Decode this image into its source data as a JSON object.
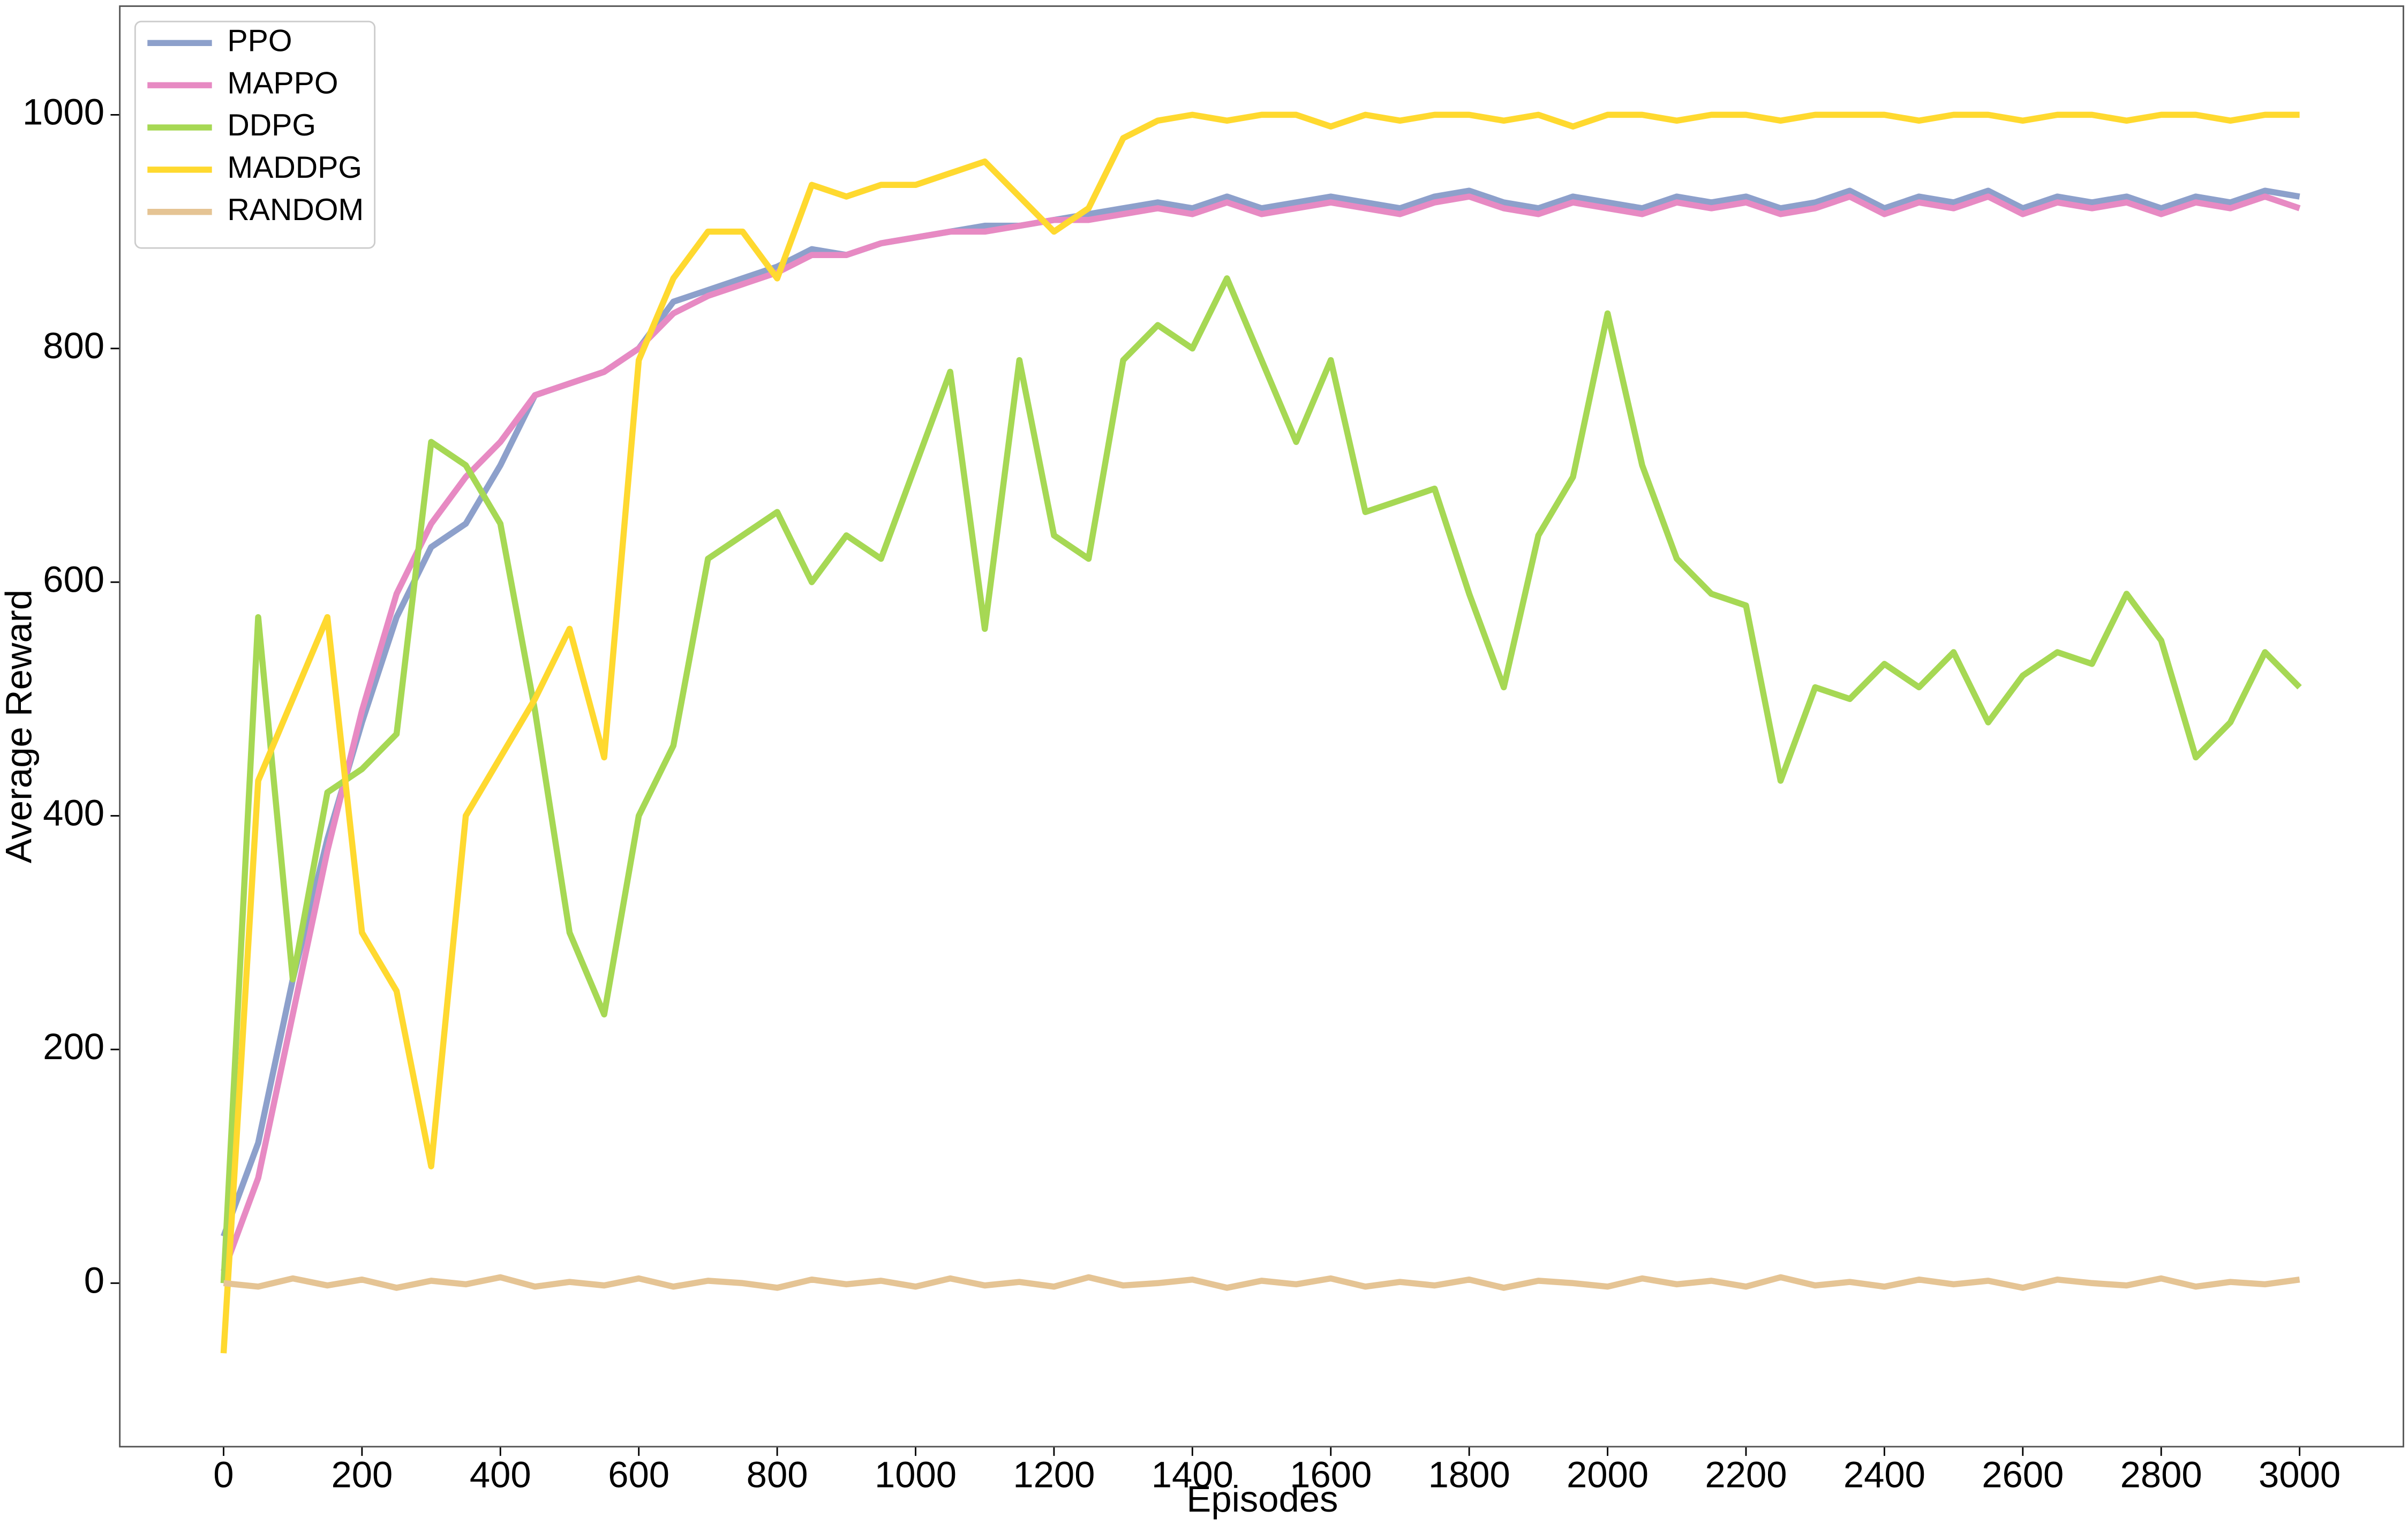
{
  "chart_data": {
    "type": "line",
    "xlabel": "Episodes",
    "ylabel": "Average Reward",
    "x": [
      0,
      50,
      100,
      150,
      200,
      250,
      300,
      350,
      400,
      450,
      500,
      550,
      600,
      650,
      700,
      750,
      800,
      850,
      900,
      950,
      1000,
      1050,
      1100,
      1150,
      1200,
      1250,
      1300,
      1350,
      1400,
      1450,
      1500,
      1550,
      1600,
      1650,
      1700,
      1750,
      1800,
      1850,
      1900,
      1950,
      2000,
      2050,
      2100,
      2150,
      2200,
      2250,
      2300,
      2350,
      2400,
      2450,
      2500,
      2550,
      2600,
      2650,
      2700,
      2750,
      2800,
      2850,
      2900,
      2950,
      3000
    ],
    "series": [
      {
        "name": "PPO",
        "color": "#8da0cb",
        "values": [
          40,
          120,
          260,
          380,
          480,
          570,
          630,
          650,
          700,
          760,
          770,
          780,
          800,
          840,
          850,
          860,
          870,
          885,
          880,
          890,
          895,
          900,
          905,
          905,
          910,
          915,
          920,
          925,
          920,
          930,
          920,
          925,
          930,
          925,
          920,
          930,
          935,
          925,
          920,
          930,
          925,
          920,
          930,
          925,
          930,
          920,
          925,
          935,
          920,
          930,
          925,
          935,
          920,
          930,
          925,
          930,
          920,
          930,
          925,
          935,
          930
        ]
      },
      {
        "name": "MAPPO",
        "color": "#e78ac3",
        "values": [
          10,
          90,
          230,
          370,
          490,
          590,
          650,
          690,
          720,
          760,
          770,
          780,
          800,
          830,
          845,
          855,
          865,
          880,
          880,
          890,
          895,
          900,
          900,
          905,
          910,
          910,
          915,
          920,
          915,
          925,
          915,
          920,
          925,
          920,
          915,
          925,
          930,
          920,
          915,
          925,
          920,
          915,
          925,
          920,
          925,
          915,
          920,
          930,
          915,
          925,
          920,
          930,
          915,
          925,
          920,
          925,
          915,
          925,
          920,
          930,
          920
        ]
      },
      {
        "name": "DDPG",
        "color": "#a6d854",
        "values": [
          0,
          570,
          260,
          420,
          440,
          470,
          720,
          700,
          650,
          490,
          300,
          230,
          400,
          460,
          620,
          640,
          660,
          600,
          640,
          620,
          700,
          780,
          560,
          790,
          640,
          620,
          790,
          820,
          800,
          860,
          790,
          720,
          790,
          660,
          670,
          680,
          590,
          510,
          640,
          690,
          830,
          700,
          620,
          590,
          580,
          430,
          510,
          500,
          530,
          510,
          540,
          480,
          520,
          540,
          530,
          590,
          550,
          450,
          480,
          540,
          510
        ]
      },
      {
        "name": "MADDPG",
        "color": "#ffd92f",
        "values": [
          -60,
          430,
          500,
          570,
          300,
          250,
          100,
          400,
          450,
          500,
          560,
          450,
          790,
          860,
          900,
          900,
          860,
          940,
          930,
          940,
          940,
          950,
          960,
          930,
          900,
          920,
          980,
          995,
          1000,
          995,
          1000,
          1000,
          990,
          1000,
          995,
          1000,
          1000,
          995,
          1000,
          990,
          1000,
          1000,
          995,
          1000,
          1000,
          995,
          1000,
          1000,
          1000,
          995,
          1000,
          1000,
          995,
          1000,
          1000,
          995,
          1000,
          1000,
          995,
          1000,
          1000
        ]
      },
      {
        "name": "RANDOM",
        "color": "#e5c494",
        "values": [
          0,
          -3,
          4,
          -2,
          3,
          -4,
          2,
          -1,
          5,
          -3,
          1,
          -2,
          4,
          -3,
          2,
          0,
          -4,
          3,
          -1,
          2,
          -3,
          4,
          -2,
          1,
          -3,
          5,
          -2,
          0,
          3,
          -4,
          2,
          -1,
          4,
          -3,
          1,
          -2,
          3,
          -4,
          2,
          0,
          -3,
          4,
          -1,
          2,
          -3,
          5,
          -2,
          1,
          -3,
          3,
          -1,
          2,
          -4,
          3,
          0,
          -2,
          4,
          -3,
          1,
          -1,
          3
        ]
      }
    ],
    "xlim": [
      -150,
      3150
    ],
    "ylim": [
      -140,
      1093
    ],
    "xticks": [
      0,
      200,
      400,
      600,
      800,
      1000,
      1200,
      1400,
      1600,
      1800,
      2000,
      2200,
      2400,
      2600,
      2800,
      3000
    ],
    "yticks": [
      0,
      200,
      400,
      600,
      800,
      1000
    ],
    "legend": "upper left"
  }
}
